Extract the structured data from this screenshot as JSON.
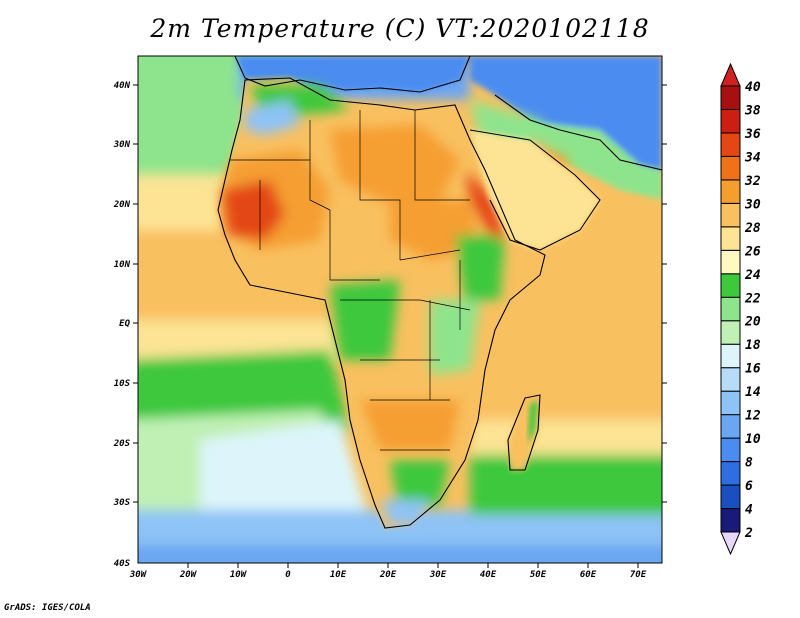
{
  "title": "2m Temperature (C) VT:2020102118",
  "credit": "GrADS: IGES/COLA",
  "axes": {
    "lat_labels": [
      "40N",
      "30N",
      "20N",
      "10N",
      "EQ",
      "10S",
      "20S",
      "30S",
      "40S"
    ],
    "lon_labels": [
      "30W",
      "20W",
      "10W",
      "0",
      "10E",
      "20E",
      "30E",
      "40E",
      "50E",
      "60E",
      "70E"
    ]
  },
  "colorbar": {
    "levels": [
      "2",
      "4",
      "6",
      "8",
      "10",
      "12",
      "14",
      "16",
      "18",
      "20",
      "22",
      "24",
      "26",
      "28",
      "30",
      "32",
      "34",
      "36",
      "38",
      "40"
    ],
    "colors": [
      "#e8d8fc",
      "#1a1a7a",
      "#1a4fc0",
      "#2f6ee0",
      "#4b8cf0",
      "#6aa6f2",
      "#8ec3f6",
      "#b6dcf8",
      "#ddf5fa",
      "#c0f0b4",
      "#8ee48c",
      "#3ec83c",
      "#fff8c0",
      "#fce494",
      "#f9c060",
      "#f59e30",
      "#ef7218",
      "#e44614",
      "#cc1e12",
      "#a61010",
      "#d02020"
    ]
  },
  "colors": {
    "ocean_south": "#ddf5fa",
    "ocean_mid": "#3ec83c",
    "ocean_tropical": "#fce494",
    "land_hot": "#f59e30",
    "land_warm": "#f9c060",
    "land_very_hot": "#e44614",
    "mediterranean": "#6aa6f2"
  }
}
